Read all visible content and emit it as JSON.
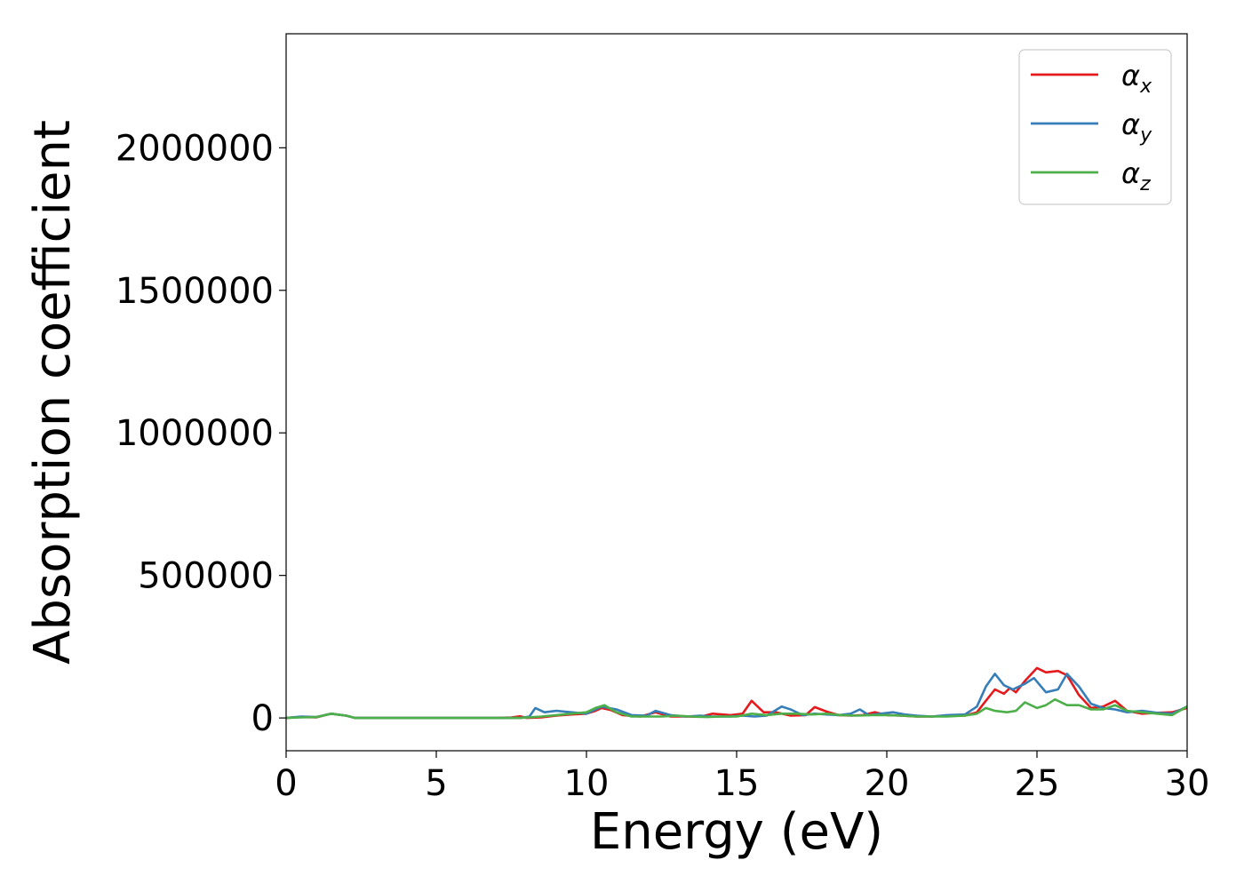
{
  "chart_data": {
    "type": "line",
    "xlabel": "Energy (eV)",
    "ylabel": "Absorption coefficient",
    "xlim": [
      0,
      30
    ],
    "ylim": [
      -115000,
      2400000
    ],
    "x_ticks": [
      0,
      5,
      10,
      15,
      20,
      25,
      30
    ],
    "x_tick_labels": [
      "0",
      "5",
      "10",
      "15",
      "20",
      "25",
      "30"
    ],
    "y_ticks": [
      0,
      500000,
      1000000,
      1500000,
      2000000
    ],
    "y_tick_labels": [
      "0",
      "500000",
      "1000000",
      "1500000",
      "2000000"
    ],
    "grid": false,
    "legend_position": "top-right",
    "series": [
      {
        "name": "α",
        "subscript": "x",
        "color": "#e41a1c",
        "points": [
          [
            0,
            0
          ],
          [
            0.5,
            3000
          ],
          [
            1,
            2000
          ],
          [
            1.5,
            15000
          ],
          [
            2,
            8000
          ],
          [
            2.3,
            0
          ],
          [
            3,
            0
          ],
          [
            4,
            0
          ],
          [
            5,
            0
          ],
          [
            6,
            0
          ],
          [
            7,
            0
          ],
          [
            7.5,
            2000
          ],
          [
            7.8,
            6000
          ],
          [
            8,
            0
          ],
          [
            8.5,
            2000
          ],
          [
            9,
            8000
          ],
          [
            9.5,
            12000
          ],
          [
            10,
            15000
          ],
          [
            10.3,
            25000
          ],
          [
            10.5,
            35000
          ],
          [
            10.8,
            28000
          ],
          [
            11.2,
            10000
          ],
          [
            11.8,
            5000
          ],
          [
            12.3,
            20000
          ],
          [
            12.8,
            5000
          ],
          [
            13.3,
            5000
          ],
          [
            13.8,
            4000
          ],
          [
            14.2,
            15000
          ],
          [
            14.8,
            10000
          ],
          [
            15.2,
            15000
          ],
          [
            15.5,
            60000
          ],
          [
            15.9,
            20000
          ],
          [
            16.3,
            20000
          ],
          [
            16.8,
            8000
          ],
          [
            17.3,
            10000
          ],
          [
            17.6,
            38000
          ],
          [
            18,
            22000
          ],
          [
            18.4,
            10000
          ],
          [
            18.8,
            8000
          ],
          [
            19.2,
            10000
          ],
          [
            19.6,
            20000
          ],
          [
            20,
            10000
          ],
          [
            20.5,
            8000
          ],
          [
            21,
            5000
          ],
          [
            21.5,
            5000
          ],
          [
            22,
            8000
          ],
          [
            22.6,
            8000
          ],
          [
            23,
            20000
          ],
          [
            23.3,
            60000
          ],
          [
            23.6,
            100000
          ],
          [
            23.9,
            85000
          ],
          [
            24.1,
            105000
          ],
          [
            24.3,
            90000
          ],
          [
            24.6,
            130000
          ],
          [
            25,
            175000
          ],
          [
            25.3,
            160000
          ],
          [
            25.7,
            165000
          ],
          [
            26,
            150000
          ],
          [
            26.4,
            80000
          ],
          [
            26.8,
            35000
          ],
          [
            27.2,
            40000
          ],
          [
            27.6,
            60000
          ],
          [
            28,
            25000
          ],
          [
            28.5,
            15000
          ],
          [
            29,
            18000
          ],
          [
            29.5,
            20000
          ],
          [
            30,
            35000
          ]
        ]
      },
      {
        "name": "α",
        "subscript": "y",
        "color": "#377eb8",
        "points": [
          [
            0,
            0
          ],
          [
            0.5,
            5000
          ],
          [
            1,
            3000
          ],
          [
            1.5,
            15000
          ],
          [
            2,
            8000
          ],
          [
            2.3,
            0
          ],
          [
            3,
            0
          ],
          [
            4,
            0
          ],
          [
            5,
            0
          ],
          [
            6,
            0
          ],
          [
            7,
            0
          ],
          [
            7.8,
            0
          ],
          [
            8.1,
            5000
          ],
          [
            8.3,
            35000
          ],
          [
            8.6,
            20000
          ],
          [
            9,
            25000
          ],
          [
            9.5,
            20000
          ],
          [
            10,
            15000
          ],
          [
            10.5,
            40000
          ],
          [
            11,
            30000
          ],
          [
            11.5,
            10000
          ],
          [
            12,
            8000
          ],
          [
            12.3,
            25000
          ],
          [
            12.8,
            10000
          ],
          [
            13.3,
            5000
          ],
          [
            13.8,
            8000
          ],
          [
            14.2,
            5000
          ],
          [
            14.8,
            5000
          ],
          [
            15.2,
            8000
          ],
          [
            15.6,
            5000
          ],
          [
            16,
            8000
          ],
          [
            16.5,
            40000
          ],
          [
            16.8,
            30000
          ],
          [
            17.2,
            10000
          ],
          [
            17.6,
            15000
          ],
          [
            18,
            12000
          ],
          [
            18.4,
            10000
          ],
          [
            18.8,
            15000
          ],
          [
            19.1,
            30000
          ],
          [
            19.4,
            10000
          ],
          [
            19.8,
            15000
          ],
          [
            20.2,
            20000
          ],
          [
            20.6,
            12000
          ],
          [
            21,
            8000
          ],
          [
            21.5,
            5000
          ],
          [
            22,
            10000
          ],
          [
            22.6,
            12000
          ],
          [
            23,
            40000
          ],
          [
            23.3,
            110000
          ],
          [
            23.6,
            155000
          ],
          [
            23.9,
            115000
          ],
          [
            24.2,
            100000
          ],
          [
            24.6,
            120000
          ],
          [
            24.9,
            140000
          ],
          [
            25.3,
            90000
          ],
          [
            25.7,
            100000
          ],
          [
            26,
            155000
          ],
          [
            26.4,
            110000
          ],
          [
            26.8,
            50000
          ],
          [
            27.2,
            35000
          ],
          [
            27.6,
            30000
          ],
          [
            28,
            20000
          ],
          [
            28.5,
            25000
          ],
          [
            29,
            18000
          ],
          [
            29.5,
            15000
          ],
          [
            30,
            40000
          ]
        ]
      },
      {
        "name": "α",
        "subscript": "z",
        "color": "#4daf4a",
        "points": [
          [
            0,
            0
          ],
          [
            0.5,
            2000
          ],
          [
            1,
            3000
          ],
          [
            1.5,
            15000
          ],
          [
            2,
            8000
          ],
          [
            2.3,
            0
          ],
          [
            3,
            0
          ],
          [
            4,
            0
          ],
          [
            5,
            0
          ],
          [
            6,
            0
          ],
          [
            7,
            0
          ],
          [
            7.8,
            0
          ],
          [
            8.5,
            5000
          ],
          [
            9,
            10000
          ],
          [
            9.5,
            15000
          ],
          [
            10,
            20000
          ],
          [
            10.3,
            35000
          ],
          [
            10.6,
            45000
          ],
          [
            11,
            20000
          ],
          [
            11.5,
            5000
          ],
          [
            12,
            5000
          ],
          [
            12.5,
            5000
          ],
          [
            13,
            8000
          ],
          [
            13.5,
            5000
          ],
          [
            14,
            3000
          ],
          [
            14.5,
            5000
          ],
          [
            15,
            5000
          ],
          [
            15.5,
            15000
          ],
          [
            16,
            10000
          ],
          [
            16.5,
            15000
          ],
          [
            17,
            15000
          ],
          [
            17.5,
            12000
          ],
          [
            18,
            15000
          ],
          [
            18.5,
            10000
          ],
          [
            19,
            8000
          ],
          [
            19.5,
            10000
          ],
          [
            20,
            10000
          ],
          [
            20.5,
            8000
          ],
          [
            21,
            5000
          ],
          [
            21.5,
            5000
          ],
          [
            22,
            5000
          ],
          [
            22.6,
            8000
          ],
          [
            23,
            15000
          ],
          [
            23.3,
            35000
          ],
          [
            23.6,
            25000
          ],
          [
            24,
            20000
          ],
          [
            24.3,
            25000
          ],
          [
            24.6,
            55000
          ],
          [
            25,
            35000
          ],
          [
            25.3,
            45000
          ],
          [
            25.6,
            65000
          ],
          [
            26,
            45000
          ],
          [
            26.4,
            45000
          ],
          [
            26.8,
            30000
          ],
          [
            27.2,
            30000
          ],
          [
            27.6,
            45000
          ],
          [
            28,
            25000
          ],
          [
            28.5,
            20000
          ],
          [
            29,
            15000
          ],
          [
            29.5,
            10000
          ],
          [
            30,
            40000
          ]
        ]
      }
    ]
  }
}
